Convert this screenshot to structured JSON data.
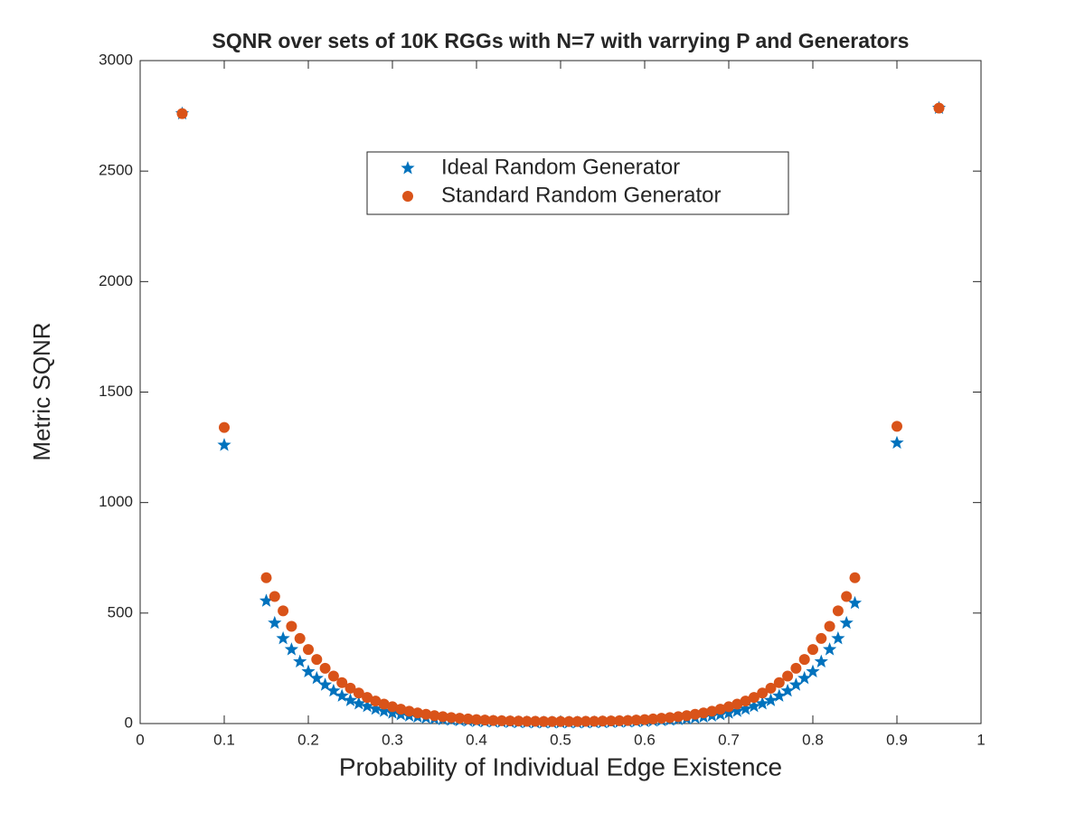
{
  "chart_data": {
    "type": "scatter",
    "title": "SQNR over sets of 10K RGGs with N=7 with varrying P and Generators",
    "x_label": "Probability of Individual Edge Existence",
    "y_label": "Metric SQNR",
    "x": [
      0.05,
      0.1,
      0.15,
      0.16,
      0.17,
      0.18,
      0.19,
      0.2,
      0.21,
      0.22,
      0.23,
      0.24,
      0.25,
      0.26,
      0.27,
      0.28,
      0.29,
      0.3,
      0.31,
      0.32,
      0.33,
      0.34,
      0.35,
      0.36,
      0.37,
      0.38,
      0.39,
      0.4,
      0.41,
      0.42,
      0.43,
      0.44,
      0.45,
      0.46,
      0.47,
      0.48,
      0.49,
      0.5,
      0.51,
      0.52,
      0.53,
      0.54,
      0.55,
      0.56,
      0.57,
      0.58,
      0.59,
      0.6,
      0.61,
      0.62,
      0.63,
      0.64,
      0.65,
      0.66,
      0.67,
      0.68,
      0.69,
      0.7,
      0.71,
      0.72,
      0.73,
      0.74,
      0.75,
      0.76,
      0.77,
      0.78,
      0.79,
      0.8,
      0.81,
      0.82,
      0.83,
      0.84,
      0.85,
      0.9,
      0.95
    ],
    "series": [
      {
        "name": "Ideal Random Generator",
        "color": "#0072BD",
        "marker": "star",
        "values": [
          2760,
          1260,
          555,
          455,
          385,
          335,
          280,
          235,
          205,
          175,
          148,
          125,
          105,
          90,
          78,
          66,
          56,
          48,
          41,
          35,
          30,
          26,
          22,
          19,
          16,
          14,
          12,
          10,
          9,
          8,
          7,
          6,
          5,
          5,
          4,
          4,
          4,
          4,
          4,
          4,
          4,
          5,
          5,
          6,
          7,
          8,
          9,
          10,
          12,
          14,
          16,
          19,
          22,
          26,
          30,
          35,
          41,
          48,
          56,
          66,
          78,
          90,
          105,
          125,
          148,
          175,
          205,
          235,
          280,
          335,
          385,
          455,
          545,
          1270,
          2785
        ]
      },
      {
        "name": "Standard Random Generator",
        "color": "#D95319",
        "marker": "circle",
        "values": [
          2760,
          1340,
          660,
          575,
          510,
          440,
          385,
          335,
          290,
          250,
          215,
          185,
          160,
          138,
          118,
          102,
          88,
          76,
          65,
          56,
          48,
          42,
          36,
          31,
          27,
          24,
          21,
          18,
          16,
          14,
          13,
          12,
          11,
          10,
          10,
          9,
          9,
          9,
          9,
          9,
          10,
          10,
          11,
          12,
          13,
          14,
          16,
          18,
          21,
          24,
          27,
          31,
          36,
          42,
          48,
          56,
          65,
          76,
          88,
          102,
          118,
          138,
          160,
          185,
          215,
          250,
          290,
          335,
          385,
          440,
          510,
          575,
          660,
          1345,
          2785
        ]
      }
    ],
    "xlim": [
      0,
      1
    ],
    "xticks": [
      0,
      0.1,
      0.2,
      0.3,
      0.4,
      0.5,
      0.6,
      0.7,
      0.8,
      0.9,
      1
    ],
    "ylim": [
      0,
      3000
    ],
    "yticks": [
      0,
      500,
      1000,
      1500,
      2000,
      2500,
      3000
    ],
    "grid": false,
    "legend_position": "top"
  }
}
